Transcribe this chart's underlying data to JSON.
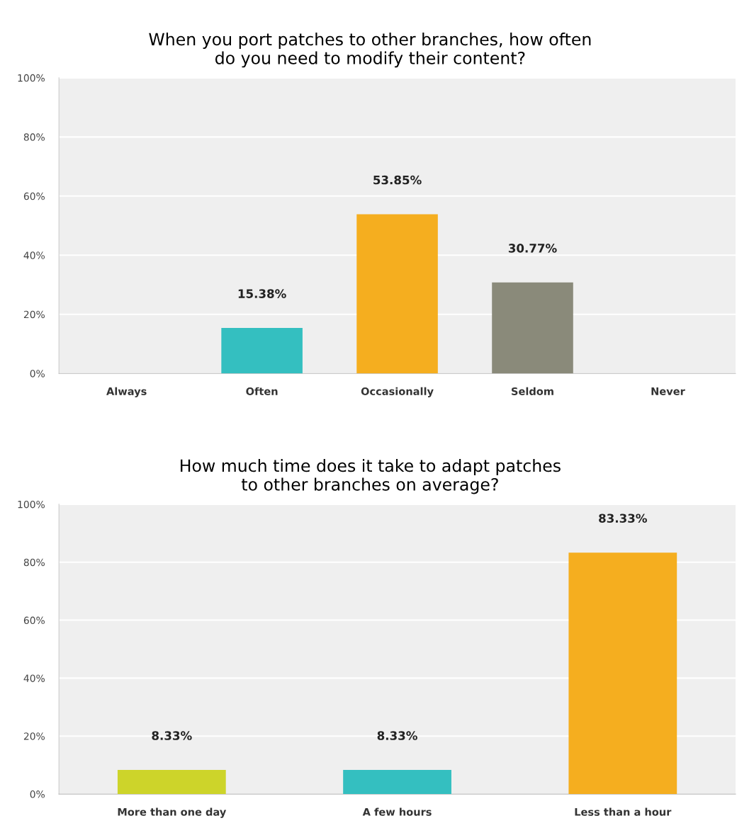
{
  "chart_data": [
    {
      "type": "bar",
      "title": "When you port patches to other branches, how often\ndo you need to modify their content?",
      "categories": [
        "Always",
        "Often",
        "Occasionally",
        "Seldom",
        "Never"
      ],
      "values": [
        0,
        15.38,
        53.85,
        30.77,
        0
      ],
      "colors": [
        "#34bfc0",
        "#34bfc0",
        "#f5ae1f",
        "#8a8a7a",
        "#34bfc0"
      ],
      "value_labels": [
        null,
        "15.38%",
        "53.85%",
        "30.77%",
        null
      ],
      "ylim": [
        0,
        100
      ],
      "yticks": [
        {
          "value": 0,
          "label": "0%"
        },
        {
          "value": 20,
          "label": "20%"
        },
        {
          "value": 40,
          "label": "40%"
        },
        {
          "value": 60,
          "label": "60%"
        },
        {
          "value": 80,
          "label": "80%"
        },
        {
          "value": 100,
          "label": "100%"
        }
      ],
      "grid": "y",
      "legend": false
    },
    {
      "type": "bar",
      "title": "How much time does it take to adapt patches\nto other branches on average?",
      "categories": [
        "More than one day",
        "A few hours",
        "Less than a hour"
      ],
      "values": [
        8.33,
        8.33,
        83.33
      ],
      "colors": [
        "#cdd42a",
        "#34bfc0",
        "#f5ae1f"
      ],
      "value_labels": [
        "8.33%",
        "8.33%",
        "83.33%"
      ],
      "ylim": [
        0,
        100
      ],
      "yticks": [
        {
          "value": 0,
          "label": "0%"
        },
        {
          "value": 20,
          "label": "20%"
        },
        {
          "value": 40,
          "label": "40%"
        },
        {
          "value": 60,
          "label": "60%"
        },
        {
          "value": 80,
          "label": "80%"
        },
        {
          "value": 100,
          "label": "100%"
        }
      ],
      "grid": "y",
      "legend": false
    }
  ]
}
